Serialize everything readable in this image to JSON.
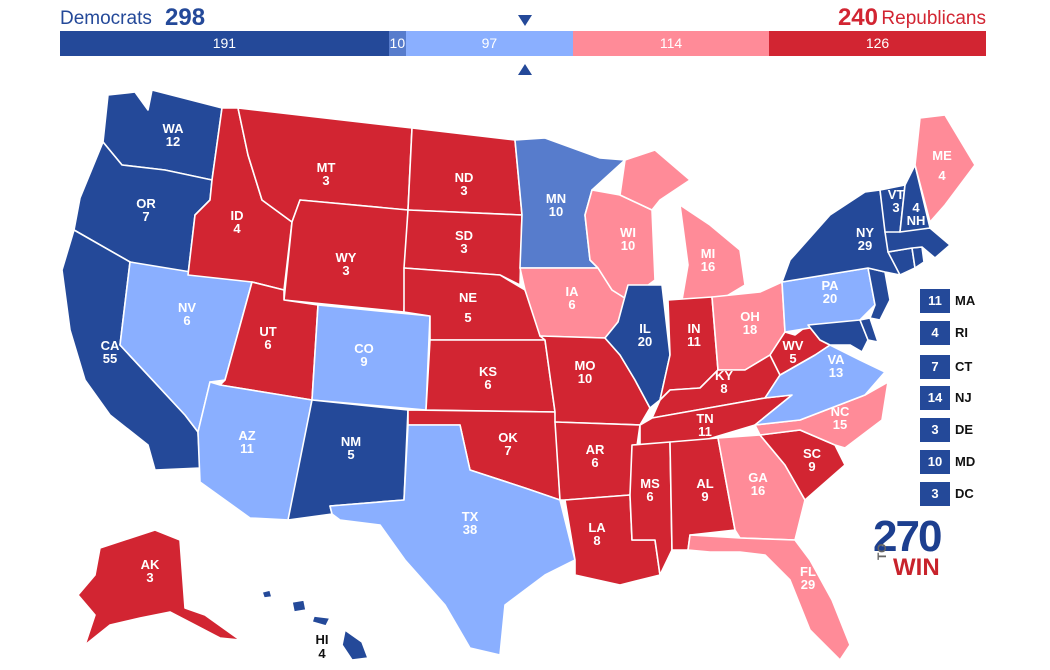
{
  "header": {
    "dem_label": "Democrats",
    "dem_total": "298",
    "rep_total": "240",
    "rep_label": "Republicans"
  },
  "bar": [
    {
      "label": "191",
      "value": 191,
      "color": "#244999"
    },
    {
      "label": "10",
      "value": 10,
      "color": "#577ccc"
    },
    {
      "label": "97",
      "value": 97,
      "color": "#8aafff"
    },
    {
      "label": "114",
      "value": 114,
      "color": "#ff8b98"
    },
    {
      "label": "126",
      "value": 126,
      "color": "#d22532"
    }
  ],
  "colors": {
    "safe_dem": "#244999",
    "likely_dem": "#577ccc",
    "lean_dem": "#8aafff",
    "lean_rep": "#ff8b98",
    "safe_rep": "#d22532"
  },
  "states": {
    "WA": {
      "votes": "12"
    },
    "OR": {
      "votes": "7"
    },
    "CA": {
      "votes": "55"
    },
    "NV": {
      "votes": "6"
    },
    "ID": {
      "votes": "4"
    },
    "MT": {
      "votes": "3"
    },
    "WY": {
      "votes": "3"
    },
    "UT": {
      "votes": "6"
    },
    "AZ": {
      "votes": "11"
    },
    "CO": {
      "votes": "9"
    },
    "NM": {
      "votes": "5"
    },
    "ND": {
      "votes": "3"
    },
    "SD": {
      "votes": "3"
    },
    "NE": {
      "votes": "5"
    },
    "KS": {
      "votes": "6"
    },
    "OK": {
      "votes": "7"
    },
    "TX": {
      "votes": "38"
    },
    "MN": {
      "votes": "10"
    },
    "IA": {
      "votes": "6"
    },
    "MO": {
      "votes": "10"
    },
    "AR": {
      "votes": "6"
    },
    "LA": {
      "votes": "8"
    },
    "WI": {
      "votes": "10"
    },
    "IL": {
      "votes": "20"
    },
    "MI": {
      "votes": "16"
    },
    "IN": {
      "votes": "11"
    },
    "OH": {
      "votes": "18"
    },
    "KY": {
      "votes": "8"
    },
    "TN": {
      "votes": "11"
    },
    "MS": {
      "votes": "6"
    },
    "AL": {
      "votes": "9"
    },
    "GA": {
      "votes": "16"
    },
    "FL": {
      "votes": "29"
    },
    "SC": {
      "votes": "9"
    },
    "NC": {
      "votes": "15"
    },
    "VA": {
      "votes": "13"
    },
    "WV": {
      "votes": "5"
    },
    "PA": {
      "votes": "20"
    },
    "NY": {
      "votes": "29"
    },
    "VT": {
      "votes": "3"
    },
    "NH": {
      "votes": "4"
    },
    "ME": {
      "votes": "4"
    },
    "AK": {
      "votes": "3"
    },
    "HI": {
      "votes": "4"
    }
  },
  "small_states": [
    {
      "votes": "11",
      "abbr": "MA"
    },
    {
      "votes": "4",
      "abbr": "RI"
    },
    {
      "votes": "7",
      "abbr": "CT"
    },
    {
      "votes": "14",
      "abbr": "NJ"
    },
    {
      "votes": "3",
      "abbr": "DE"
    },
    {
      "votes": "10",
      "abbr": "MD"
    },
    {
      "votes": "3",
      "abbr": "DC"
    }
  ],
  "logo": {
    "number": "270",
    "to": "TO",
    "win": "WIN"
  }
}
